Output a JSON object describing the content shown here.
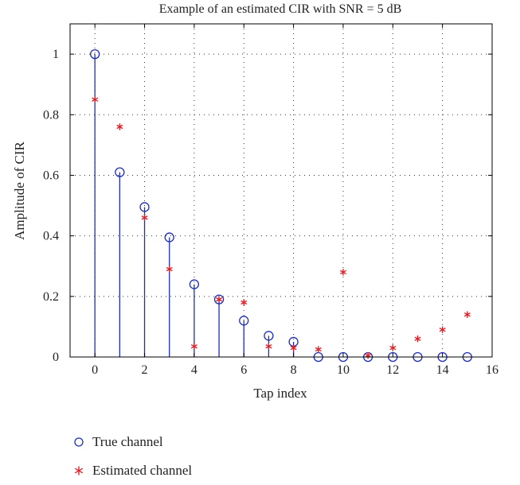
{
  "chart_data": {
    "type": "scatter",
    "title": "Example of an estimated CIR with SNR = 5 dB",
    "xlabel": "Tap index",
    "ylabel": "Amplitude of CIR",
    "xlim": [
      -1,
      16
    ],
    "ylim": [
      0,
      1.1
    ],
    "xticks": [
      0,
      2,
      4,
      6,
      8,
      10,
      12,
      14,
      16
    ],
    "yticks": [
      0,
      0.2,
      0.4,
      0.6,
      0.8,
      1
    ],
    "grid": true,
    "legend_position": "below",
    "series": [
      {
        "name": "True channel",
        "style": "stem-circle",
        "color": "#1f2fb5",
        "x": [
          0,
          1,
          2,
          3,
          4,
          5,
          6,
          7,
          8,
          9,
          10,
          11,
          12,
          13,
          14,
          15
        ],
        "values": [
          1.0,
          0.61,
          0.495,
          0.395,
          0.24,
          0.19,
          0.12,
          0.07,
          0.05,
          0,
          0,
          0,
          0,
          0,
          0,
          0
        ]
      },
      {
        "name": "Estimated channel",
        "style": "asterisk",
        "color": "#e0202a",
        "x": [
          0,
          1,
          2,
          3,
          4,
          5,
          6,
          7,
          8,
          9,
          10,
          11,
          12,
          13,
          14,
          15
        ],
        "values": [
          0.85,
          0.76,
          0.46,
          0.29,
          0.035,
          0.19,
          0.18,
          0.035,
          0.03,
          0.025,
          0.28,
          0.005,
          0.03,
          0.06,
          0.09,
          0.14
        ]
      }
    ]
  }
}
